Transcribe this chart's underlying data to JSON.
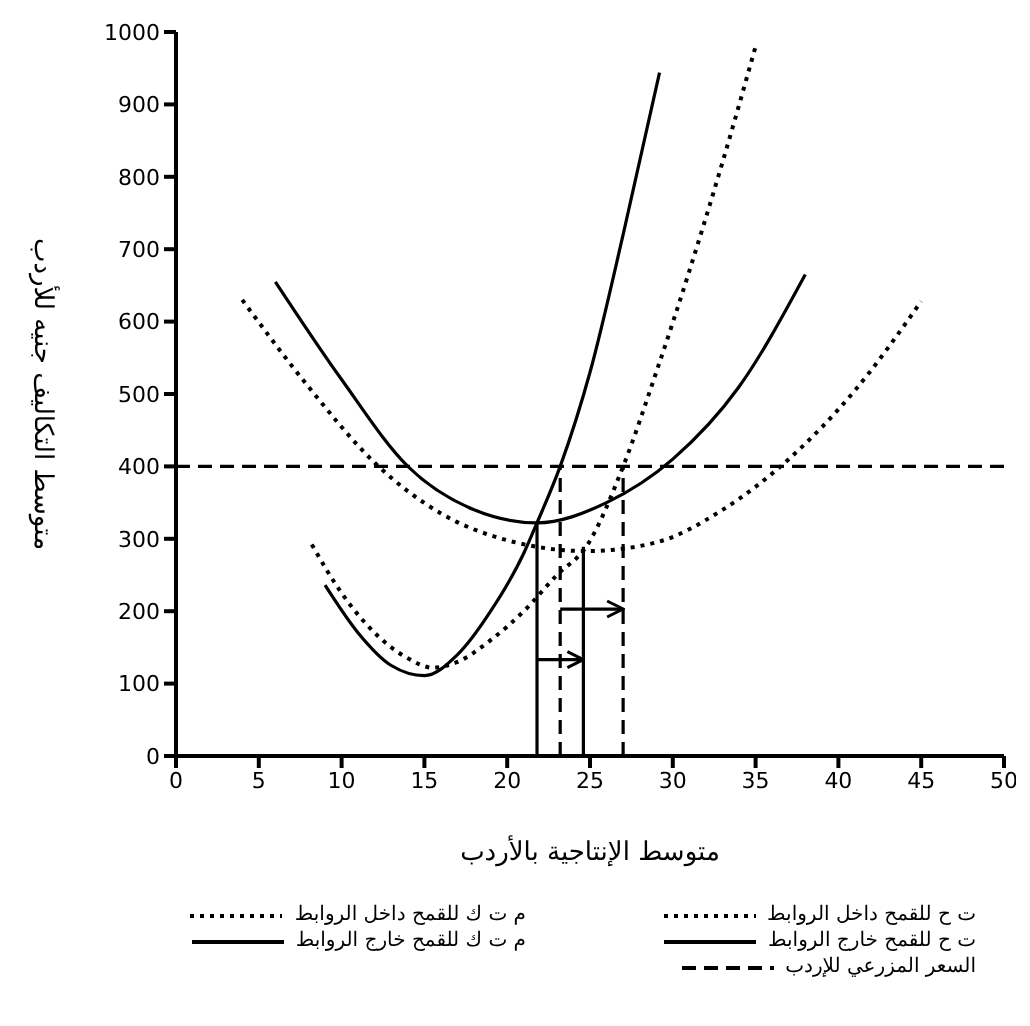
{
  "chart_data": {
    "type": "line",
    "xlabel": "متوسط الإنتاجية بالأردب",
    "ylabel": "متوسط التكاليف جنيه للأردب",
    "xlim": [
      0,
      50
    ],
    "ylim": [
      0,
      1000
    ],
    "xticks": [
      0,
      5,
      10,
      15,
      20,
      25,
      30,
      35,
      40,
      45,
      50
    ],
    "yticks": [
      0,
      100,
      200,
      300,
      400,
      500,
      600,
      700,
      800,
      900,
      1000
    ],
    "grid": false,
    "legend": "bottom",
    "marker": "none",
    "series": [
      {
        "name": "ت ح للقمح داخل الروابط",
        "color": "#000000",
        "line_style": "dotted",
        "x": [
          8.2,
          10,
          12,
          14,
          15.5,
          17,
          19,
          21,
          23,
          24.8,
          27,
          29,
          31,
          33,
          35
        ],
        "values": [
          292,
          225,
          170,
          135,
          122,
          130,
          160,
          200,
          250,
          290,
          400,
          530,
          670,
          820,
          980
        ]
      },
      {
        "name": "م ت ك للقمح داخل الروابط",
        "color": "#000000",
        "line_style": "dotted",
        "x": [
          4,
          8,
          12,
          16,
          20,
          24.8,
          29,
          33,
          37,
          41,
          45
        ],
        "values": [
          630,
          510,
          405,
          335,
          298,
          283,
          295,
          340,
          410,
          505,
          628
        ]
      },
      {
        "name": "ت ح للقمح خارج الروابط",
        "color": "#000000",
        "line_style": "solid",
        "x": [
          9,
          11,
          13,
          15,
          17,
          19,
          21,
          21.8,
          23.2,
          25,
          27,
          29.2
        ],
        "values": [
          236,
          170,
          125,
          111,
          140,
          200,
          280,
          322,
          400,
          530,
          720,
          944
        ]
      },
      {
        "name": "م ت ك للقمح خارج الروابط",
        "color": "#000000",
        "line_style": "solid",
        "x": [
          6,
          10,
          14,
          18,
          21.8,
          26,
          30,
          34,
          38
        ],
        "values": [
          655,
          520,
          400,
          340,
          322,
          350,
          410,
          510,
          665
        ]
      },
      {
        "name": "السعر المزرعي للإردب",
        "color": "#000000",
        "line_style": "dashed",
        "x": [
          0,
          50
        ],
        "values": [
          400,
          400
        ]
      },
      {
        "color": "#000000",
        "line_style": "solid",
        "x": [
          21.8,
          21.8
        ],
        "values": [
          0,
          322
        ]
      },
      {
        "color": "#000000",
        "line_style": "solid",
        "x": [
          24.6,
          24.6
        ],
        "values": [
          0,
          289
        ]
      },
      {
        "color": "#000000",
        "line_style": "dashed",
        "x": [
          23.2,
          23.2
        ],
        "values": [
          0,
          400
        ]
      },
      {
        "color": "#000000",
        "line_style": "dashed",
        "x": [
          27,
          27
        ],
        "values": [
          0,
          400
        ]
      },
      {
        "color": "#000000",
        "line_style": "solid",
        "x": [
          21.8,
          24.6
        ],
        "values": [
          133,
          133
        ]
      },
      {
        "color": "#000000",
        "line_style": "solid",
        "x": [
          23.2,
          27
        ],
        "values": [
          203,
          203
        ]
      }
    ]
  }
}
